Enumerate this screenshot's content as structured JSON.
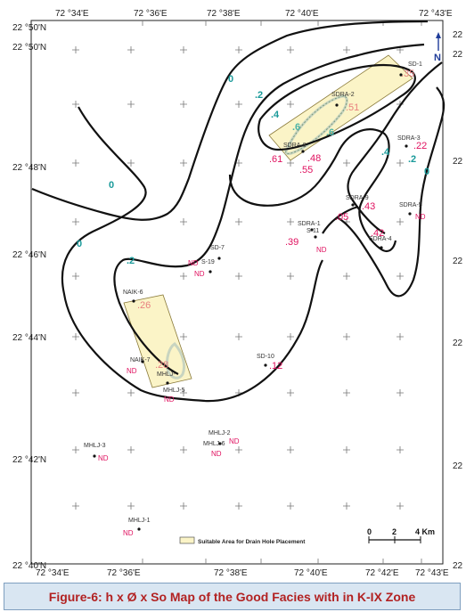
{
  "map": {
    "axis": {
      "top": [
        "72 °34'E",
        "72 °36'E",
        "72 °38'E",
        "72 °40'E",
        "72 °43'E"
      ],
      "bottom": [
        "72 °34'E",
        "72 °36'E",
        "72 °38'E",
        "72 °40'E",
        "72 °42'E",
        "72 °43'E"
      ],
      "left": [
        "22 °50'N",
        "22 °50'N",
        "22 °48'N",
        "22 °46'N",
        "22 °44'N",
        "22 °42'N",
        "22 °40'N"
      ],
      "right": [
        "22",
        "22",
        "22",
        "22",
        "22",
        "22",
        "22"
      ]
    },
    "north": "N",
    "scale": {
      "labels": [
        "0",
        "2",
        "4 Km"
      ]
    },
    "legend": "Suitable Area for Drain Hole Placement",
    "contours": [
      {
        "label": "0"
      },
      {
        "label": "0"
      },
      {
        "label": "0"
      },
      {
        "label": "0"
      },
      {
        "label": ".2"
      },
      {
        "label": ".2"
      },
      {
        "label": ".2"
      },
      {
        "label": ".4"
      },
      {
        "label": ".4"
      },
      {
        "label": ".6"
      },
      {
        "label": ".6"
      }
    ],
    "wells": [
      {
        "name": "SD-1"
      },
      {
        "name": "SDRA-2"
      },
      {
        "name": "SDRA-8"
      },
      {
        "name": "SDRA-3"
      },
      {
        "name": "SDRA-5"
      },
      {
        "name": "SDRA-9"
      },
      {
        "name": "SDRA-1"
      },
      {
        "name": "SDRA-4"
      },
      {
        "name": "S-11"
      },
      {
        "name": "SD-7"
      },
      {
        "name": "S-19"
      },
      {
        "name": "NAIK-6"
      },
      {
        "name": "NAIK-7"
      },
      {
        "name": "MHLJ-"
      },
      {
        "name": "MHLJ-5"
      },
      {
        "name": "SD-10"
      },
      {
        "name": "MHLJ-2"
      },
      {
        "name": "MHLJ-6"
      },
      {
        "name": "MHLJ-3"
      },
      {
        "name": "MHLJ-1"
      }
    ],
    "values": [
      {
        "text": ".35"
      },
      {
        "text": ".51"
      },
      {
        "text": ".61"
      },
      {
        "text": ".48"
      },
      {
        "text": ".55"
      },
      {
        "text": ".22"
      },
      {
        "text": ".43"
      },
      {
        "text": ".05"
      },
      {
        "text": ".39"
      },
      {
        "text": ".42"
      },
      {
        "text": ".26"
      },
      {
        "text": ".28"
      },
      {
        "text": ".12"
      }
    ],
    "nd": [
      {
        "text": "ND"
      },
      {
        "text": "ND"
      },
      {
        "text": "ND"
      },
      {
        "text": "ND"
      },
      {
        "text": "ND"
      },
      {
        "text": "ND"
      },
      {
        "text": "ND"
      },
      {
        "text": "ND"
      },
      {
        "text": "ND"
      },
      {
        "text": "ND"
      }
    ]
  },
  "caption": "Figure-6: h x Ø x So Map of the Good Facies with in K-IX Zone"
}
